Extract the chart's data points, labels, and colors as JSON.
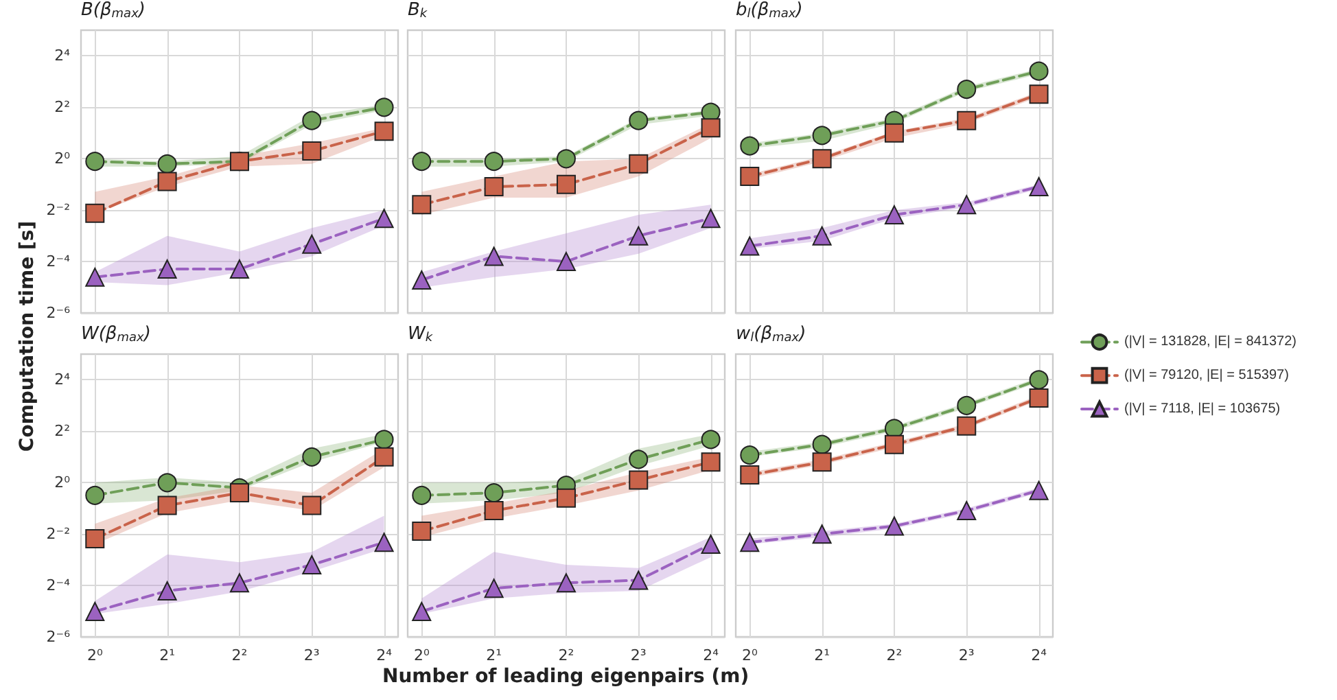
{
  "chart_data": [
    {
      "type": "line",
      "title": "B(β$_{max}$)",
      "ylabel": "Computation time [s]",
      "x": [
        1,
        2,
        4,
        8,
        16
      ],
      "xlim": [
        0.875,
        18.3
      ],
      "ylim": [
        0.015625,
        32
      ],
      "xticks": [
        {
          "value": 1,
          "label": null
        },
        {
          "value": 2,
          "label": null
        },
        {
          "value": 4,
          "label": null
        },
        {
          "value": 8,
          "label": null
        },
        {
          "value": 16,
          "label": null
        }
      ],
      "yticks": [
        {
          "value": 0.015625,
          "label": "2⁻⁶"
        },
        {
          "value": 0.0625,
          "label": "2⁻⁴"
        },
        {
          "value": 0.25,
          "label": "2⁻²"
        },
        {
          "value": 1,
          "label": "2⁰"
        },
        {
          "value": 4,
          "label": "2²"
        },
        {
          "value": 16,
          "label": "2⁴"
        }
      ],
      "log": "xy",
      "grid": true,
      "tick_labels": "y",
      "line_style": "dashed",
      "series": [
        {
          "color": "#6f9f58",
          "marker": "circle",
          "values": [
            0.93,
            0.87,
            0.93,
            2.8,
            4.0
          ],
          "lower": [
            0.81,
            0.81,
            0.87,
            2.5,
            3.7
          ],
          "upper": [
            1.0,
            0.93,
            1.07,
            3.2,
            4.3
          ]
        },
        {
          "color": "#c9634a",
          "marker": "square",
          "values": [
            0.23,
            0.54,
            0.93,
            1.23,
            2.1
          ],
          "lower": [
            0.23,
            0.47,
            0.81,
            0.87,
            1.87
          ],
          "upper": [
            0.41,
            0.62,
            1.07,
            1.52,
            2.3
          ]
        },
        {
          "color": "#9b62c0",
          "marker": "triangle",
          "values": [
            0.041,
            0.051,
            0.051,
            0.1,
            0.2
          ],
          "lower": [
            0.036,
            0.033,
            0.047,
            0.072,
            0.165
          ],
          "upper": [
            0.047,
            0.125,
            0.082,
            0.154,
            0.25
          ]
        }
      ]
    },
    {
      "type": "line",
      "title": "B$_{k}$",
      "x": [
        1,
        2,
        4,
        8,
        16
      ],
      "xlim": [
        0.875,
        18.3
      ],
      "ylim": [
        0.015625,
        32
      ],
      "xticks": [
        {
          "value": 1,
          "label": null
        },
        {
          "value": 2,
          "label": null
        },
        {
          "value": 4,
          "label": null
        },
        {
          "value": 8,
          "label": null
        },
        {
          "value": 16,
          "label": null
        }
      ],
      "yticks": [
        {
          "value": 0.015625,
          "label": null
        },
        {
          "value": 0.0625,
          "label": null
        },
        {
          "value": 0.25,
          "label": null
        },
        {
          "value": 1,
          "label": null
        },
        {
          "value": 4,
          "label": null
        },
        {
          "value": 16,
          "label": null
        }
      ],
      "log": "xy",
      "grid": true,
      "tick_labels": false,
      "line_style": "dashed",
      "series": [
        {
          "color": "#6f9f58",
          "marker": "circle",
          "values": [
            0.93,
            0.93,
            1.0,
            2.8,
            3.5
          ],
          "lower": [
            0.81,
            0.81,
            0.93,
            2.5,
            3.2
          ],
          "upper": [
            1.0,
            1.0,
            1.07,
            3.0,
            3.7
          ]
        },
        {
          "color": "#c9634a",
          "marker": "square",
          "values": [
            0.29,
            0.47,
            0.5,
            0.87,
            2.3
          ],
          "lower": [
            0.22,
            0.35,
            0.35,
            0.62,
            1.74
          ],
          "upper": [
            0.41,
            0.62,
            0.93,
            1.0,
            2.6
          ]
        },
        {
          "color": "#9b62c0",
          "marker": "triangle",
          "values": [
            0.038,
            0.072,
            0.0625,
            0.125,
            0.2
          ],
          "lower": [
            0.031,
            0.041,
            0.051,
            0.077,
            0.154
          ],
          "upper": [
            0.047,
            0.082,
            0.134,
            0.22,
            0.29
          ]
        }
      ]
    },
    {
      "type": "line",
      "title": "b$_{l}$(β$_{max}$)",
      "x": [
        1,
        2,
        4,
        8,
        16
      ],
      "xlim": [
        0.875,
        18.3
      ],
      "ylim": [
        0.015625,
        32
      ],
      "xticks": [
        {
          "value": 1,
          "label": null
        },
        {
          "value": 2,
          "label": null
        },
        {
          "value": 4,
          "label": null
        },
        {
          "value": 8,
          "label": null
        },
        {
          "value": 16,
          "label": null
        }
      ],
      "yticks": [
        {
          "value": 0.015625,
          "label": null
        },
        {
          "value": 0.0625,
          "label": null
        },
        {
          "value": 0.25,
          "label": null
        },
        {
          "value": 1,
          "label": null
        },
        {
          "value": 4,
          "label": null
        },
        {
          "value": 16,
          "label": null
        }
      ],
      "log": "xy",
      "grid": true,
      "tick_labels": false,
      "line_style": "dashed",
      "legend": "right",
      "series": [
        {
          "name": "(|V| = 131828, |E| = 841372)",
          "color": "#6f9f58",
          "marker": "circle",
          "values": [
            1.41,
            1.87,
            2.8,
            6.5,
            10.6
          ],
          "lower": [
            1.32,
            1.62,
            2.6,
            6.1,
            9.8
          ],
          "upper": [
            1.52,
            2.0,
            3.0,
            7.0,
            11.3
          ]
        },
        {
          "name": "(|V| = 79120, |E| = 515397)",
          "color": "#c9634a",
          "marker": "square",
          "values": [
            0.62,
            1.0,
            2.0,
            2.8,
            5.7
          ],
          "lower": [
            0.57,
            0.93,
            1.74,
            2.6,
            5.3
          ],
          "upper": [
            0.66,
            1.07,
            2.1,
            3.0,
            6.1
          ]
        },
        {
          "name": "(|V| = 7118, |E| = 103675)",
          "color": "#9b62c0",
          "marker": "triangle",
          "values": [
            0.095,
            0.125,
            0.22,
            0.29,
            0.47
          ],
          "lower": [
            0.088,
            0.109,
            0.2,
            0.27,
            0.44
          ],
          "upper": [
            0.117,
            0.154,
            0.25,
            0.31,
            0.5
          ]
        }
      ]
    },
    {
      "type": "line",
      "title": "W(β$_{max}$)",
      "x": [
        1,
        2,
        4,
        8,
        16
      ],
      "xlim": [
        0.875,
        18.3
      ],
      "ylim": [
        0.015625,
        32
      ],
      "xticks": [
        {
          "value": 1,
          "label": "2⁰"
        },
        {
          "value": 2,
          "label": "2¹"
        },
        {
          "value": 4,
          "label": "2²"
        },
        {
          "value": 8,
          "label": "2³"
        },
        {
          "value": 16,
          "label": "2⁴"
        }
      ],
      "yticks": [
        {
          "value": 0.015625,
          "label": "2⁻⁶"
        },
        {
          "value": 0.0625,
          "label": "2⁻⁴"
        },
        {
          "value": 0.25,
          "label": "2⁻²"
        },
        {
          "value": 1,
          "label": "2⁰"
        },
        {
          "value": 4,
          "label": "2²"
        },
        {
          "value": 16,
          "label": "2⁴"
        }
      ],
      "log": "xy",
      "grid": true,
      "line_style": "dashed",
      "series": [
        {
          "color": "#6f9f58",
          "marker": "circle",
          "values": [
            0.71,
            1.0,
            0.87,
            2.0,
            3.2
          ],
          "lower": [
            0.57,
            0.62,
            0.81,
            1.74,
            3.0
          ],
          "upper": [
            1.0,
            1.15,
            1.0,
            2.5,
            3.7
          ]
        },
        {
          "color": "#c9634a",
          "marker": "square",
          "values": [
            0.22,
            0.54,
            0.76,
            0.54,
            2.0
          ],
          "lower": [
            0.19,
            0.44,
            0.62,
            0.47,
            1.52
          ],
          "upper": [
            0.33,
            0.66,
            0.93,
            0.76,
            2.5
          ]
        },
        {
          "color": "#9b62c0",
          "marker": "triangle",
          "values": [
            0.031,
            0.054,
            0.067,
            0.109,
            0.2
          ],
          "lower": [
            0.029,
            0.038,
            0.053,
            0.091,
            0.17
          ],
          "upper": [
            0.041,
            0.144,
            0.117,
            0.154,
            0.41
          ]
        }
      ]
    },
    {
      "type": "line",
      "title": "W$_{k}$",
      "xlabel": "Number of leading eigenpairs (m)",
      "x": [
        1,
        2,
        4,
        8,
        16
      ],
      "xlim": [
        0.875,
        18.3
      ],
      "ylim": [
        0.015625,
        32
      ],
      "xticks": [
        {
          "value": 1,
          "label": "2⁰"
        },
        {
          "value": 2,
          "label": "2¹"
        },
        {
          "value": 4,
          "label": "2²"
        },
        {
          "value": 8,
          "label": "2³"
        },
        {
          "value": 16,
          "label": "2⁴"
        }
      ],
      "yticks": [
        {
          "value": 0.015625,
          "label": null
        },
        {
          "value": 0.0625,
          "label": null
        },
        {
          "value": 0.25,
          "label": null
        },
        {
          "value": 1,
          "label": null
        },
        {
          "value": 4,
          "label": null
        },
        {
          "value": 16,
          "label": null
        }
      ],
      "log": "xy",
      "grid": true,
      "tick_labels": "x",
      "line_style": "dashed",
      "series": [
        {
          "color": "#6f9f58",
          "marker": "circle",
          "values": [
            0.71,
            0.76,
            0.93,
            1.87,
            3.2
          ],
          "lower": [
            0.57,
            0.62,
            0.76,
            1.57,
            2.7
          ],
          "upper": [
            1.0,
            1.0,
            1.07,
            2.5,
            3.7
          ]
        },
        {
          "color": "#c9634a",
          "marker": "square",
          "values": [
            0.27,
            0.47,
            0.66,
            1.07,
            1.74
          ],
          "lower": [
            0.23,
            0.38,
            0.54,
            0.81,
            1.41
          ],
          "upper": [
            0.41,
            0.57,
            0.81,
            1.32,
            2.0
          ]
        },
        {
          "color": "#9b62c0",
          "marker": "triangle",
          "values": [
            0.031,
            0.058,
            0.067,
            0.072,
            0.19
          ],
          "lower": [
            0.029,
            0.044,
            0.051,
            0.054,
            0.134
          ],
          "upper": [
            0.044,
            0.154,
            0.109,
            0.1,
            0.23
          ]
        }
      ]
    },
    {
      "type": "line",
      "title": "w$_{l}$(β$_{max}$)",
      "x": [
        1,
        2,
        4,
        8,
        16
      ],
      "xlim": [
        0.875,
        18.3
      ],
      "ylim": [
        0.015625,
        32
      ],
      "xticks": [
        {
          "value": 1,
          "label": "2⁰"
        },
        {
          "value": 2,
          "label": "2¹"
        },
        {
          "value": 4,
          "label": "2²"
        },
        {
          "value": 8,
          "label": "2³"
        },
        {
          "value": 16,
          "label": "2⁴"
        }
      ],
      "yticks": [
        {
          "value": 0.015625,
          "label": null
        },
        {
          "value": 0.0625,
          "label": null
        },
        {
          "value": 0.25,
          "label": null
        },
        {
          "value": 1,
          "label": null
        },
        {
          "value": 4,
          "label": null
        },
        {
          "value": 16,
          "label": null
        }
      ],
      "log": "xy",
      "grid": true,
      "tick_labels": "x",
      "line_style": "dashed",
      "series": [
        {
          "color": "#6f9f58",
          "marker": "circle",
          "values": [
            2.1,
            2.8,
            4.3,
            8.0,
            16
          ],
          "lower": [
            2.0,
            2.6,
            4.0,
            7.5,
            15
          ],
          "upper": [
            2.3,
            3.0,
            4.6,
            8.6,
            17.1
          ]
        },
        {
          "color": "#c9634a",
          "marker": "square",
          "values": [
            1.23,
            1.74,
            2.8,
            4.6,
            9.8
          ],
          "lower": [
            1.15,
            1.62,
            2.6,
            4.3,
            9.2
          ],
          "upper": [
            1.32,
            1.87,
            3.0,
            4.9,
            10.6
          ]
        },
        {
          "color": "#9b62c0",
          "marker": "triangle",
          "values": [
            0.2,
            0.25,
            0.31,
            0.47,
            0.81
          ],
          "lower": [
            0.19,
            0.23,
            0.29,
            0.44,
            0.76
          ],
          "upper": [
            0.22,
            0.27,
            0.33,
            0.5,
            0.87
          ]
        }
      ]
    }
  ]
}
